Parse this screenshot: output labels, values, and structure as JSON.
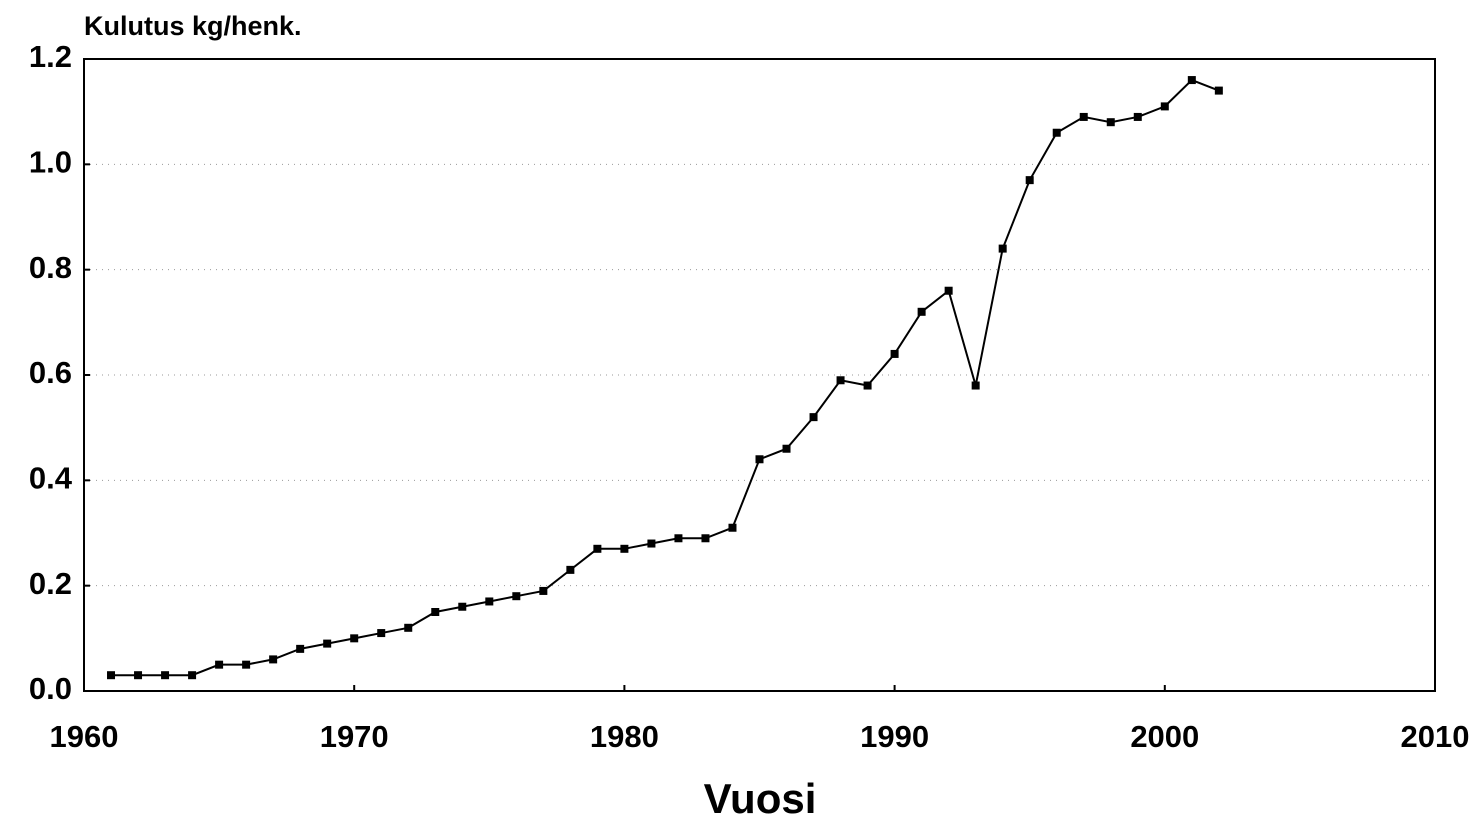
{
  "chart_data": {
    "type": "line",
    "title": "Kulutus kg/henk.",
    "x_label": "Vuosi",
    "x": [
      1961,
      1962,
      1963,
      1964,
      1965,
      1966,
      1967,
      1968,
      1969,
      1970,
      1971,
      1972,
      1973,
      1974,
      1975,
      1976,
      1977,
      1978,
      1979,
      1980,
      1981,
      1982,
      1983,
      1984,
      1985,
      1986,
      1987,
      1988,
      1989,
      1990,
      1991,
      1992,
      1993,
      1994,
      1995,
      1996,
      1997,
      1998,
      1999,
      2000,
      2001,
      2002
    ],
    "values": [
      0.03,
      0.03,
      0.03,
      0.03,
      0.05,
      0.05,
      0.06,
      0.08,
      0.09,
      0.1,
      0.11,
      0.12,
      0.15,
      0.16,
      0.17,
      0.18,
      0.19,
      0.23,
      0.27,
      0.27,
      0.28,
      0.29,
      0.29,
      0.31,
      0.44,
      0.46,
      0.52,
      0.59,
      0.58,
      0.64,
      0.72,
      0.76,
      0.58,
      0.84,
      0.97,
      1.06,
      1.09,
      1.08,
      1.09,
      1.11,
      1.16,
      1.14
    ],
    "color": "#000000",
    "xlim": [
      1960,
      2010
    ],
    "xticks": [
      1960,
      1970,
      1980,
      1990,
      2000,
      2010
    ],
    "ylim": [
      0,
      1.2
    ],
    "yticks": [
      {
        "value": 0,
        "label": "0.0"
      },
      0.2,
      0.4,
      0.6,
      0.8,
      {
        "value": 1,
        "label": "1.0"
      },
      1.2
    ],
    "grid": true
  }
}
